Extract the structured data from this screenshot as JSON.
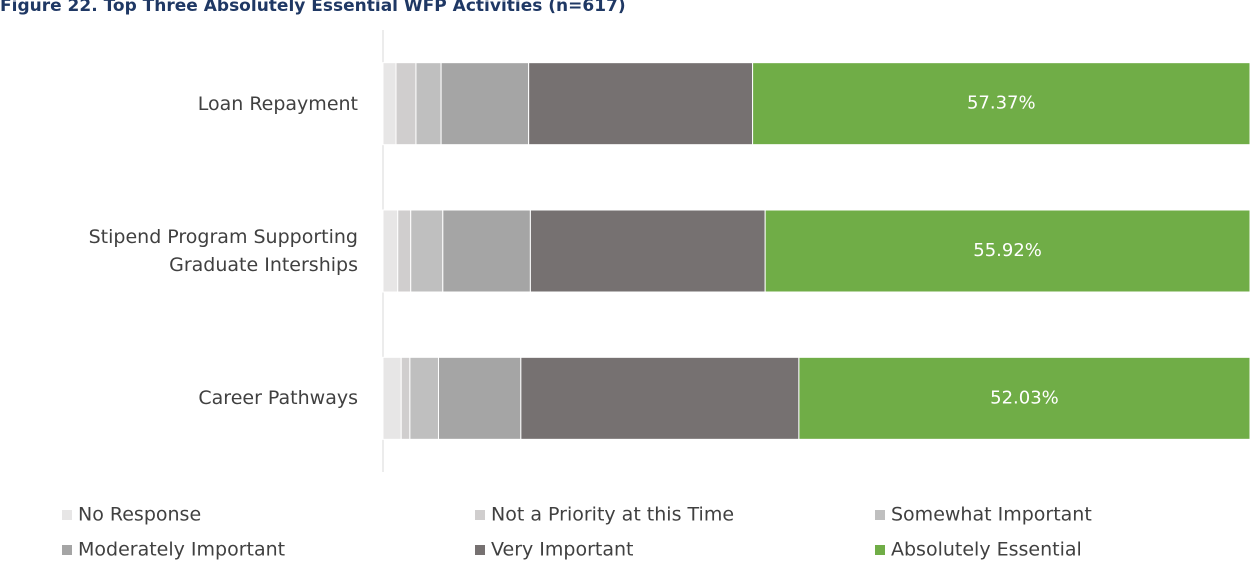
{
  "chart_data": {
    "type": "stacked-bar-horizontal",
    "title": "Figure 22. Top Three Absolutely Essential WFP Activities (n=617)",
    "categories": [
      "Loan Repayment",
      "Stipend Program Supporting Graduate Interships",
      "Career Pathways"
    ],
    "series": [
      {
        "name": "No Response",
        "color": "#e7e6e6",
        "values": [
          1.5,
          1.7,
          2.1
        ]
      },
      {
        "name": "Not a Priority at this Time",
        "color": "#d0cece",
        "values": [
          2.3,
          1.5,
          1.0
        ]
      },
      {
        "name": "Somewhat Important",
        "color": "#bfbfbf",
        "values": [
          2.9,
          3.7,
          3.3
        ]
      },
      {
        "name": "Moderately Important",
        "color": "#a5a5a5",
        "values": [
          10.1,
          10.1,
          9.5
        ]
      },
      {
        "name": "Very Important",
        "color": "#767171",
        "values": [
          25.83,
          27.08,
          32.07
        ]
      },
      {
        "name": "Absolutely Essential",
        "color": "#70ad47",
        "values": [
          57.37,
          55.92,
          52.03
        ],
        "value_labels": [
          "57.37%",
          "55.92%",
          "52.03%"
        ]
      }
    ],
    "xlim": [
      0,
      100
    ]
  }
}
